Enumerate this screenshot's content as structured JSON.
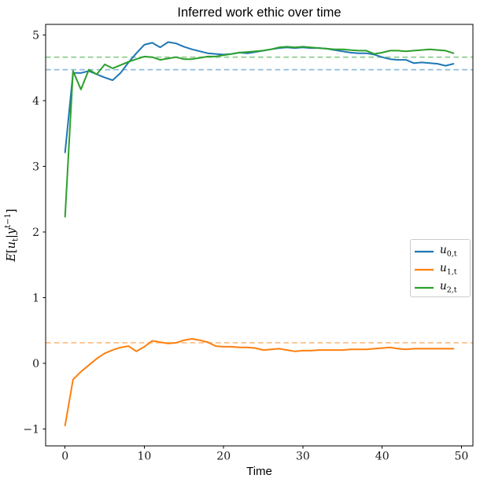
{
  "chart_data": {
    "type": "line",
    "title": "Inferred work ethic over time",
    "xlabel": "Time",
    "ylabel": "E[u_t | y^(t-1)]",
    "ylabel_parts": {
      "e": "E",
      "open": "[",
      "u": "u",
      "sub": "t",
      "bar": "|",
      "y": "y",
      "sup": "t−1",
      "close": "]"
    },
    "xlim": [
      -2.45,
      51.45
    ],
    "ylim": [
      -1.26,
      5.16
    ],
    "grid": false,
    "legend_position": "center right",
    "xticks": {
      "values": [
        0,
        10,
        20,
        30,
        40,
        50
      ],
      "labels": [
        "0",
        "10",
        "20",
        "30",
        "40",
        "50"
      ]
    },
    "yticks": {
      "values": [
        5,
        4,
        3,
        2,
        1,
        0,
        -1
      ],
      "labels": [
        "5",
        "4",
        "3",
        "2",
        "1",
        "0",
        "−1"
      ]
    },
    "x_start": 0,
    "x_step": 1,
    "series": [
      {
        "name": "u0",
        "legend_base": "u",
        "legend_sub": "0,t",
        "color": "#1f77b4",
        "mean_line": {
          "value": 4.47,
          "color": "#8fbbda",
          "style": "dashed"
        },
        "values": [
          3.21,
          4.42,
          4.42,
          4.45,
          4.4,
          4.35,
          4.31,
          4.42,
          4.58,
          4.72,
          4.85,
          4.88,
          4.81,
          4.89,
          4.87,
          4.82,
          4.78,
          4.75,
          4.72,
          4.71,
          4.7,
          4.71,
          4.73,
          4.72,
          4.74,
          4.76,
          4.78,
          4.8,
          4.81,
          4.8,
          4.81,
          4.8,
          4.8,
          4.79,
          4.77,
          4.75,
          4.73,
          4.72,
          4.72,
          4.7,
          4.66,
          4.63,
          4.62,
          4.62,
          4.57,
          4.58,
          4.57,
          4.56,
          4.53,
          4.56
        ]
      },
      {
        "name": "u1",
        "legend_base": "u",
        "legend_sub": "1,t",
        "color": "#ff7f0e",
        "mean_line": {
          "value": 0.31,
          "color": "#ffbf86",
          "style": "dashed"
        },
        "values": [
          -0.95,
          -0.25,
          -0.13,
          -0.03,
          0.07,
          0.15,
          0.2,
          0.24,
          0.26,
          0.18,
          0.25,
          0.34,
          0.32,
          0.3,
          0.31,
          0.35,
          0.37,
          0.35,
          0.32,
          0.26,
          0.25,
          0.25,
          0.24,
          0.24,
          0.23,
          0.2,
          0.21,
          0.22,
          0.2,
          0.18,
          0.19,
          0.19,
          0.2,
          0.2,
          0.2,
          0.2,
          0.21,
          0.21,
          0.21,
          0.22,
          0.23,
          0.24,
          0.22,
          0.21,
          0.22,
          0.22,
          0.22,
          0.22,
          0.22,
          0.22
        ]
      },
      {
        "name": "u2",
        "legend_base": "u",
        "legend_sub": "2,t",
        "color": "#2ca02c",
        "mean_line": {
          "value": 4.66,
          "color": "#95cf95",
          "style": "dashed"
        },
        "values": [
          2.23,
          4.45,
          4.17,
          4.47,
          4.4,
          4.55,
          4.49,
          4.54,
          4.59,
          4.63,
          4.67,
          4.66,
          4.62,
          4.64,
          4.66,
          4.63,
          4.63,
          4.65,
          4.67,
          4.67,
          4.69,
          4.71,
          4.73,
          4.74,
          4.75,
          4.76,
          4.78,
          4.81,
          4.82,
          4.81,
          4.82,
          4.81,
          4.8,
          4.79,
          4.78,
          4.78,
          4.77,
          4.76,
          4.76,
          4.71,
          4.73,
          4.76,
          4.76,
          4.75,
          4.76,
          4.77,
          4.78,
          4.77,
          4.76,
          4.72
        ]
      }
    ]
  }
}
